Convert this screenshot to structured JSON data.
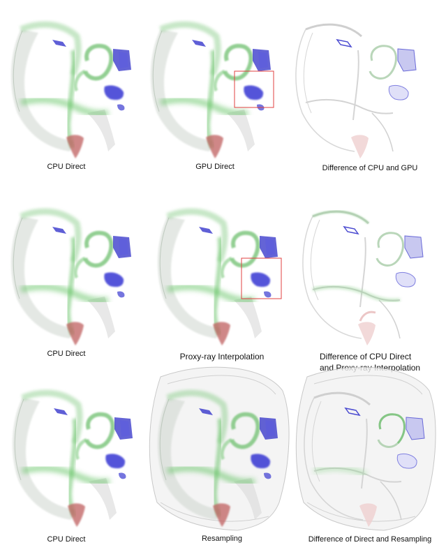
{
  "captions": {
    "r1c1": "CPU Direct",
    "r1c2": "GPU Direct",
    "r1c3": "Difference of CPU and GPU",
    "r2c1": "CPU Direct",
    "r2c2": "Proxy-ray Interpolation",
    "r2c3_line1": "Difference of CPU Direct",
    "r2c3_line2": "and Proxy-ray Interpolation",
    "r3c1": "CPU Direct",
    "r3c2": "Resampling",
    "r3c3": "Difference of Direct and Resampling"
  },
  "colors": {
    "green": "#5fbf5f",
    "blue": "#2b2bd0",
    "red": "#c05050",
    "gray": "#bdbdbd",
    "highlight_box": "#e04040"
  }
}
